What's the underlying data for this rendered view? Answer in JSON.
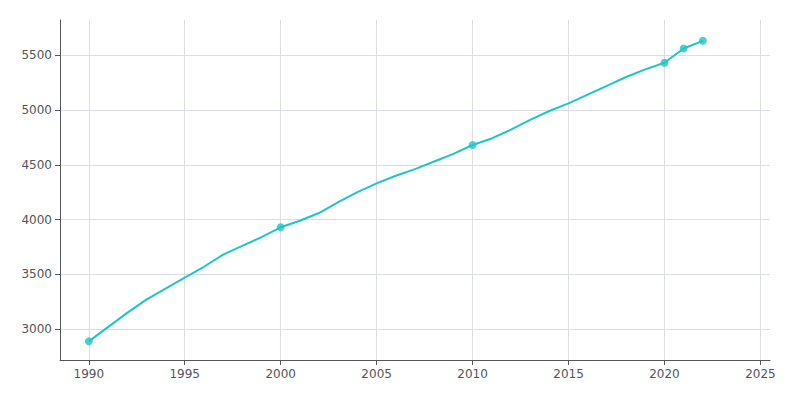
{
  "chart_data": {
    "type": "line",
    "x": [
      1990,
      1991,
      1992,
      1993,
      1994,
      1995,
      1996,
      1997,
      1998,
      1999,
      2000,
      2001,
      2002,
      2003,
      2004,
      2005,
      2006,
      2007,
      2008,
      2009,
      2010,
      2011,
      2012,
      2013,
      2014,
      2015,
      2016,
      2017,
      2018,
      2019,
      2020,
      2021,
      2022
    ],
    "series": [
      {
        "type": "line",
        "color": "#20c4c4",
        "values": [
          2890,
          3020,
          3150,
          3270,
          3370,
          3470,
          3570,
          3680,
          3760,
          3840,
          3930,
          3990,
          4060,
          4160,
          4250,
          4330,
          4400,
          4460,
          4530,
          4600,
          4680,
          4740,
          4820,
          4910,
          4990,
          5060,
          5140,
          5220,
          5300,
          5370,
          5430,
          5560,
          5630
        ]
      },
      {
        "type": "scatter",
        "marker": "circle",
        "color": "#20c4c4",
        "x": [
          1990,
          2000,
          2010,
          2020,
          2021,
          2022
        ],
        "values": [
          2890,
          3930,
          4680,
          5430,
          5560,
          5630
        ]
      }
    ],
    "xlim": [
      1988.5,
      2025.5
    ],
    "ylim": [
      2720,
      5820
    ],
    "xticks": [
      1990,
      1995,
      2000,
      2005,
      2010,
      2015,
      2020,
      2025
    ],
    "yticks": [
      3000,
      3500,
      4000,
      4500,
      5000,
      5500
    ],
    "grid": true
  }
}
